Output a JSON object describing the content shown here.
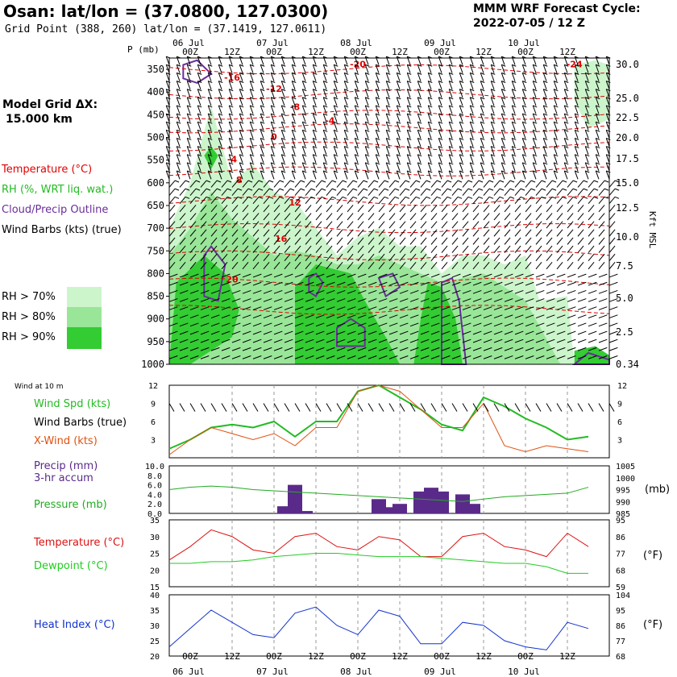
{
  "header": {
    "title": "Osan:  lat/lon = (37.0800, 127.0300)",
    "subtitle": "Grid Point (388, 260) lat/lon = (37.1419, 127.0611)",
    "cycle_line1": "MMM WRF Forecast Cycle:",
    "cycle_line2": "2022-07-05 / 12  Z",
    "model_grid_line1": "Model Grid ΔX:",
    "model_grid_line2": "15.000 km"
  },
  "upper_legend": {
    "temperature": "Temperature (°C)",
    "rh": "RH (%, WRT liq. wat.)",
    "cloud": "Cloud/Precip Outline",
    "wind": "Wind Barbs (kts) (true)",
    "rh70": "RH > 70%",
    "rh80": "RH > 80%",
    "rh90": "RH > 90%",
    "kft_msl": "Kft MSL",
    "p_label": "P (mb)",
    "colors": {
      "temperature": "#e00000",
      "rh": "#22bb22",
      "cloud": "#6a2d9a",
      "rh70": "#ccf5cc",
      "rh80": "#99e699",
      "rh90": "#33cc33"
    }
  },
  "time_axis": {
    "hours": [
      "00Z",
      "12Z",
      "00Z",
      "12Z",
      "00Z",
      "12Z",
      "00Z",
      "12Z",
      "00Z",
      "12Z"
    ],
    "days": [
      "06 Jul",
      "07 Jul",
      "08 Jul",
      "09 Jul",
      "10 Jul"
    ]
  },
  "lower_legend": {
    "wind10": "Wind at 10 m",
    "wind_spd": "Wind Spd (kts)",
    "wind_barbs": "Wind Barbs (true)",
    "xwind": "X-Wind (kts)",
    "precip1": "Precip (mm)",
    "precip2": "3-hr accum",
    "pressure": "Pressure (mb)",
    "temperature": "Temperature (°C)",
    "dewpoint": "Dewpoint (°C)",
    "heat_index": "Heat Index (°C)",
    "mb": "(mb)",
    "degF1": "(°F)",
    "degF2": "(°F)",
    "colors": {
      "wind_spd": "#22bb22",
      "xwind": "#e05010",
      "precip": "#5a2a8a",
      "pressure": "#22aa22",
      "temperature": "#dd1111",
      "dewpoint": "#22cc22",
      "heat_index": "#1133cc"
    }
  },
  "chart_data": [
    {
      "type": "heatmap",
      "name_shown": "",
      "y_pressure_ticks": [
        350,
        400,
        450,
        500,
        550,
        600,
        650,
        700,
        750,
        800,
        850,
        900,
        950,
        1000
      ],
      "y_kft_ticks": [
        "30.0",
        "25.0",
        "22.5",
        "20.0",
        "17.5",
        "15.0",
        "12.5",
        "10.0",
        "7.5",
        "5.0",
        "2.5",
        "0.34"
      ],
      "temperature_contour_labels": [
        "-24",
        "-20",
        "-16",
        "-12",
        "-8",
        "-4",
        "0",
        "4",
        "8",
        "12",
        "16",
        "20"
      ],
      "rh_thresholds": [
        "70%",
        "80%",
        "90%"
      ]
    },
    {
      "type": "line",
      "left_ticks": [
        "3",
        "6",
        "9",
        "12"
      ],
      "right_ticks": [
        "3",
        "6",
        "9",
        "12"
      ],
      "ylim": [
        0,
        12
      ],
      "x_hours": [
        0,
        6,
        12,
        18,
        24,
        30,
        36,
        42,
        48,
        54,
        60,
        66,
        72,
        78,
        84,
        90,
        96,
        102,
        108,
        114,
        120
      ],
      "series": [
        {
          "name": "Wind Spd (kts)",
          "values": [
            1.5,
            3,
            5,
            5.5,
            5,
            6,
            3.5,
            6,
            6,
            11,
            12,
            10,
            8,
            5.5,
            4.5,
            10,
            8.5,
            6.5,
            5,
            3,
            3.5
          ]
        },
        {
          "name": "X-Wind (kts)",
          "values": [
            0.5,
            3,
            5,
            4,
            3,
            4,
            2,
            5,
            5,
            11,
            12,
            11,
            8,
            5,
            5,
            9,
            2,
            1,
            2,
            1.5,
            1
          ]
        }
      ]
    },
    {
      "type": "bar",
      "left_ticks": [
        "0.0",
        "2.0",
        "4.0",
        "6.0",
        "8.0",
        "10.0"
      ],
      "right_ticks": [
        "985",
        "990",
        "995",
        "1000",
        "1005"
      ],
      "ylim": [
        0,
        10
      ],
      "bars_3hr_mm": [
        {
          "h": 33,
          "v": 1.5
        },
        {
          "h": 36,
          "v": 6
        },
        {
          "h": 39,
          "v": 0.5
        },
        {
          "h": 60,
          "v": 3
        },
        {
          "h": 63,
          "v": 1.3
        },
        {
          "h": 66,
          "v": 2
        },
        {
          "h": 72,
          "v": 4.6
        },
        {
          "h": 75,
          "v": 5.4
        },
        {
          "h": 78,
          "v": 4.6
        },
        {
          "h": 84,
          "v": 4
        },
        {
          "h": 87,
          "v": 2
        }
      ],
      "pressure_mb": [
        995,
        996,
        996.5,
        996,
        995,
        994.5,
        994,
        993.5,
        993,
        992.5,
        992,
        991.5,
        991,
        990.5,
        990,
        991,
        992,
        992.5,
        993,
        993.5,
        996
      ]
    },
    {
      "type": "line",
      "left_ticks": [
        "15",
        "20",
        "25",
        "30",
        "35"
      ],
      "right_ticks": [
        "59",
        "68",
        "77",
        "86",
        "95"
      ],
      "ylim": [
        15,
        35
      ],
      "series": [
        {
          "name": "Temperature (°C)",
          "values": [
            23,
            27,
            32,
            30,
            26,
            25,
            30,
            31,
            27,
            26,
            30,
            29,
            24,
            24,
            30,
            31,
            27,
            26,
            24,
            31,
            27
          ]
        },
        {
          "name": "Dewpoint (°C)",
          "values": [
            22,
            22,
            22.5,
            22.5,
            23,
            24,
            24.5,
            25,
            25,
            24.5,
            24,
            24,
            24,
            23.5,
            23,
            22.5,
            22,
            22,
            21,
            19,
            19
          ]
        }
      ]
    },
    {
      "type": "line",
      "left_ticks": [
        "20",
        "25",
        "30",
        "35",
        "40"
      ],
      "right_ticks": [
        "68",
        "77",
        "86",
        "95",
        "104"
      ],
      "ylim": [
        20,
        40
      ],
      "series": [
        {
          "name": "Heat Index (°C)",
          "values": [
            23,
            29,
            35,
            31,
            27,
            26,
            34,
            36,
            30,
            27,
            35,
            33,
            24,
            24,
            31,
            30,
            25,
            23,
            22,
            31,
            29
          ]
        }
      ]
    }
  ]
}
